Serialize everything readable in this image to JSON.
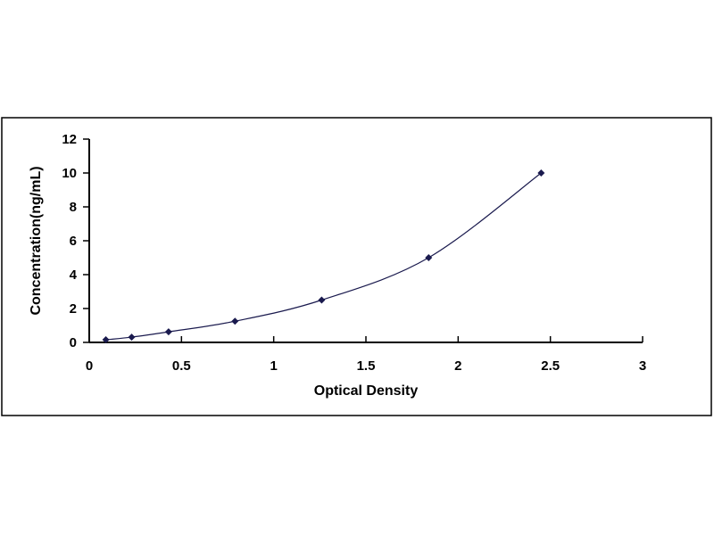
{
  "chart_data": {
    "type": "scatter",
    "title": "",
    "xlabel": "Optical Density",
    "ylabel": "Concentration(ng/mL)",
    "xlim": [
      0,
      3
    ],
    "ylim": [
      0,
      12
    ],
    "xticks": [
      "0",
      "0.5",
      "1",
      "1.5",
      "2",
      "2.5",
      "3"
    ],
    "yticks": [
      "0",
      "2",
      "4",
      "6",
      "8",
      "10",
      "12"
    ],
    "grid": false,
    "legend": "none",
    "trendline": "smooth curve",
    "marker_color": "#1a1a4e",
    "line_color": "#1a1a4e",
    "points": [
      {
        "x": 0.09,
        "y": 0.156
      },
      {
        "x": 0.23,
        "y": 0.312
      },
      {
        "x": 0.43,
        "y": 0.625
      },
      {
        "x": 0.79,
        "y": 1.25
      },
      {
        "x": 1.26,
        "y": 2.5
      },
      {
        "x": 1.84,
        "y": 5
      },
      {
        "x": 2.45,
        "y": 10
      }
    ]
  }
}
